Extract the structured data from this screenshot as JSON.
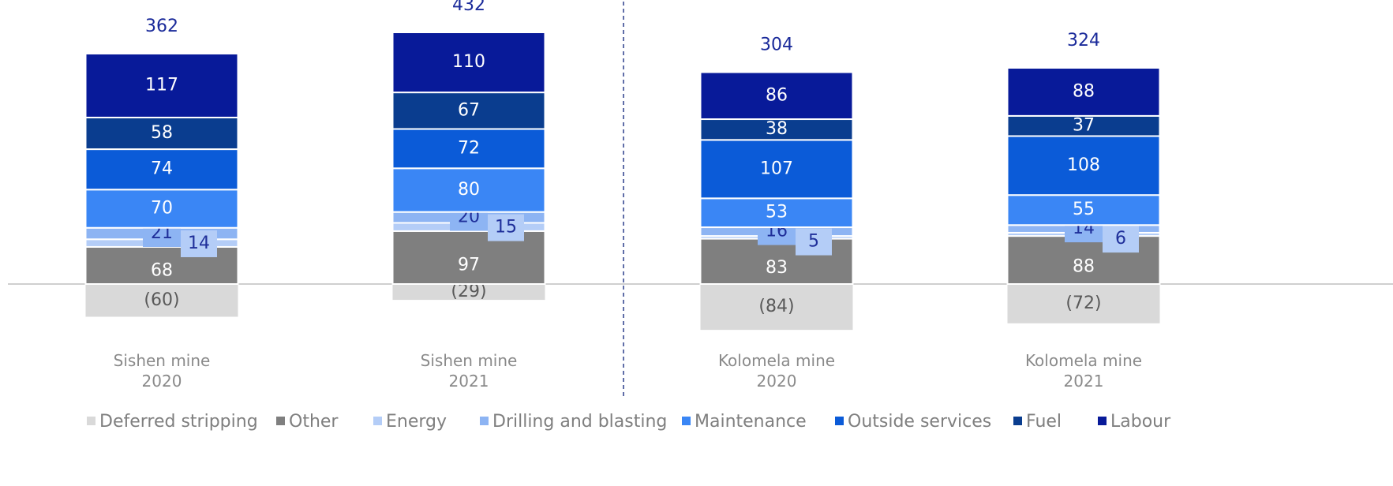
{
  "chart_data": {
    "type": "stacked_bar",
    "categories": [
      "Sishen mine 2020",
      "Sishen mine 2021",
      "Kolomela mine 2020",
      "Kolomela mine 2021"
    ],
    "series": [
      {
        "name": "Deferred stripping",
        "color": "#d9d9d9",
        "values": [
          -60,
          -29,
          -84,
          -72
        ],
        "value_labels": [
          "(60)",
          "(29)",
          "(84)",
          "(72)"
        ]
      },
      {
        "name": "Other",
        "color": "#7f7f7f",
        "values": [
          68,
          97,
          83,
          88
        ]
      },
      {
        "name": "Energy",
        "color": "#b4cdf7",
        "values": [
          14,
          15,
          5,
          6
        ]
      },
      {
        "name": "Drilling and blasting",
        "color": "#8db4f3",
        "values": [
          21,
          20,
          16,
          14
        ]
      },
      {
        "name": "Maintenance",
        "color": "#3a86f5",
        "values": [
          70,
          80,
          53,
          55
        ]
      },
      {
        "name": "Outside services",
        "color": "#0b5bd8",
        "values": [
          74,
          72,
          107,
          108
        ]
      },
      {
        "name": "Fuel",
        "color": "#0a3d8f",
        "values": [
          58,
          67,
          38,
          37
        ]
      },
      {
        "name": "Labour",
        "color": "#081a99",
        "values": [
          117,
          110,
          86,
          88
        ]
      }
    ],
    "totals": [
      362,
      432,
      304,
      324
    ]
  }
}
